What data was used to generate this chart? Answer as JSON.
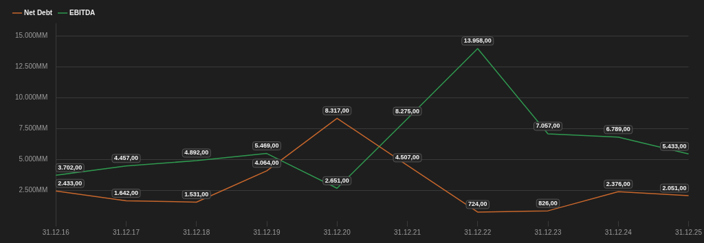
{
  "chart_data": {
    "type": "line",
    "categories": [
      "31.12.16",
      "31.12.17",
      "31.12.18",
      "31.12.19",
      "31.12.20",
      "31.12.21",
      "31.12.22",
      "31.12.23",
      "31.12.24",
      "31.12.25"
    ],
    "series": [
      {
        "name": "Net Debt",
        "color": "#c8672c",
        "values": [
          2433,
          1642,
          1531,
          4064,
          8317,
          4507,
          724,
          826,
          2376,
          2051
        ],
        "value_labels": [
          "2.433,00",
          "1.642,00",
          "1.531,00",
          "4.064,00",
          "8.317,00",
          "4.507,00",
          "724,00",
          "826,00",
          "2.376,00",
          "2.051,00"
        ]
      },
      {
        "name": "EBITDA",
        "color": "#2f9a50",
        "values": [
          3702,
          4457,
          4892,
          5469,
          2651,
          8275,
          13958,
          7057,
          6789,
          5433
        ],
        "value_labels": [
          "3.702,00",
          "4.457,00",
          "4.892,00",
          "5.469,00",
          "2.651,00",
          "8.275,00",
          "13.958,00",
          "7.057,00",
          "6.789,00",
          "5.433,00"
        ]
      }
    ],
    "ylim": [
      0,
      16000
    ],
    "yticks": [
      {
        "value": 2500,
        "label": "2.500MM"
      },
      {
        "value": 5000,
        "label": "5.000MM"
      },
      {
        "value": 7500,
        "label": "7.500MM"
      },
      {
        "value": 10000,
        "label": "10.000MM"
      },
      {
        "value": 12500,
        "label": "12.500MM"
      },
      {
        "value": 15000,
        "label": "15.000MM"
      }
    ],
    "grid": "y",
    "legend": "top left",
    "marker": "none",
    "line_style": "solid"
  }
}
